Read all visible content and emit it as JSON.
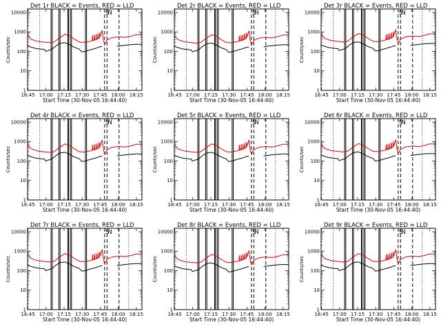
{
  "chart_data": {
    "type": "line",
    "layout": "3x3 grid",
    "xlabel": "Start Time (30-Nov-05 16:44:40)",
    "ylabel": "Counts/sec",
    "y_scale": "log",
    "ylim": [
      1,
      15000
    ],
    "y_ticks": [
      1,
      10,
      100,
      1000,
      10000
    ],
    "y_tick_labels": [
      "1",
      "10",
      "100",
      "1000",
      "10000"
    ],
    "x_unit": "minutes after 16:44:40",
    "xlim": [
      0,
      95
    ],
    "x_ticks": [
      0.33,
      15.33,
      30.33,
      45.33,
      60.33,
      75.33,
      90.33
    ],
    "x_tick_labels": [
      "16:45",
      "17:00",
      "17:15",
      "17:30",
      "17:45",
      "18:00",
      "18:15"
    ],
    "saa_label": "S",
    "night_label": "N",
    "legend": "BLACK = Events, RED = LLD",
    "colors": {
      "events": "#000000",
      "lld": "#e00000"
    },
    "series": [
      {
        "name": "Events",
        "color": "#000000"
      },
      {
        "name": "LLD",
        "color": "#e00000"
      }
    ],
    "panels": [
      {
        "title": "Det 1r  BLACK = Events, RED = LLD",
        "scale": 1.0
      },
      {
        "title": "Det 2r  BLACK = Events, RED = LLD",
        "scale": 0.95
      },
      {
        "title": "Det 3r  BLACK = Events, RED = LLD",
        "scale": 1.1
      },
      {
        "title": "Det 4r  BLACK = Events, RED = LLD",
        "scale": 1.0
      },
      {
        "title": "Det 5r  BLACK = Events, RED = LLD",
        "scale": 1.0
      },
      {
        "title": "Det 6r  BLACK = Events, RED = LLD",
        "scale": 1.05
      },
      {
        "title": "Det 7r  BLACK = Events, RED = LLD",
        "scale": 1.0
      },
      {
        "title": "Det 8r  BLACK = Events, RED = LLD",
        "scale": 0.9
      },
      {
        "title": "Det 9r  BLACK = Events, RED = LLD",
        "scale": 1.0
      }
    ],
    "lld_profile": [
      [
        0,
        700
      ],
      [
        3,
        420
      ],
      [
        8,
        330
      ],
      [
        13,
        300
      ],
      [
        18,
        280
      ],
      [
        22,
        300
      ],
      [
        27,
        520
      ],
      [
        31,
        750
      ],
      [
        35,
        620
      ],
      [
        39,
        420
      ],
      [
        43,
        300
      ],
      [
        47,
        290
      ],
      [
        52,
        330
      ],
      [
        57,
        400
      ],
      [
        60,
        500
      ],
      [
        62,
        1200
      ],
      [
        63,
        400
      ],
      [
        64,
        220
      ],
      [
        66,
        380
      ],
      [
        70,
        500
      ],
      [
        76,
        560
      ],
      [
        81,
        520
      ],
      [
        86,
        600
      ],
      [
        90,
        720
      ],
      [
        95,
        720
      ]
    ],
    "events_profile": [
      [
        0,
        190
      ],
      [
        3,
        165
      ],
      [
        7,
        140
      ],
      [
        11,
        130
      ],
      [
        14,
        125
      ],
      [
        15,
        100
      ],
      [
        17,
        110
      ],
      [
        20,
        125
      ],
      [
        24,
        200
      ],
      [
        27,
        260
      ],
      [
        31,
        280
      ],
      [
        35,
        220
      ],
      [
        39,
        160
      ],
      [
        43,
        130
      ],
      [
        45,
        95
      ],
      [
        48,
        100
      ],
      [
        52,
        120
      ],
      [
        56,
        140
      ],
      [
        60,
        170
      ],
      [
        62,
        180
      ],
      [
        64,
        0
      ],
      [
        67,
        0
      ],
      [
        70,
        0
      ],
      [
        74,
        180
      ],
      [
        79,
        200
      ],
      [
        85,
        220
      ],
      [
        90,
        230
      ],
      [
        95,
        230
      ]
    ],
    "lld_spikes_x": [
      54,
      55.5,
      57,
      58.5,
      60
    ],
    "dotted_lines_x": [
      10.0,
      84.0
    ],
    "solid_lines_x": [
      19.5,
      20.5,
      26.0,
      27.0,
      33.5,
      34.0,
      35.5,
      36.5,
      48.0,
      49.0
    ],
    "dashed_lines_x": [
      64.0,
      66.0,
      76.0
    ]
  }
}
